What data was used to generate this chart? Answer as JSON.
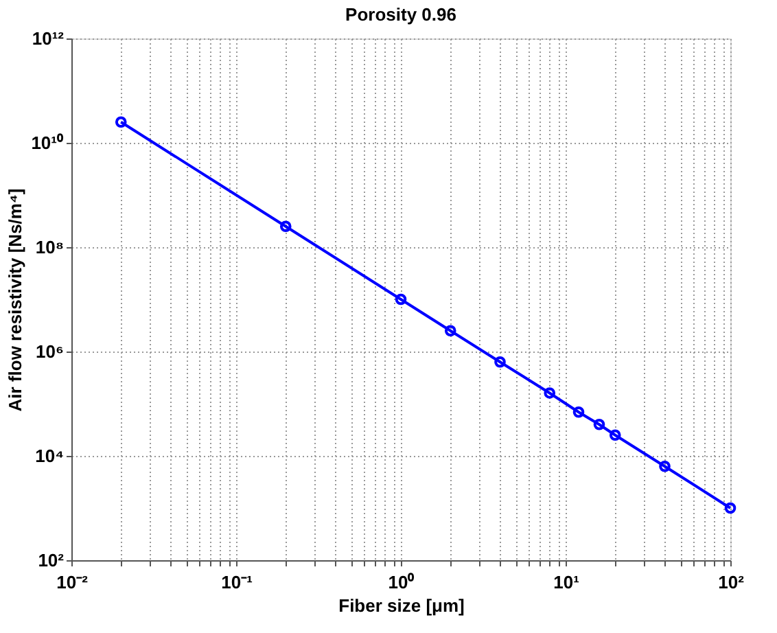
{
  "chart_data": {
    "type": "line",
    "title": "Porosity 0.96",
    "xlabel": "Fiber size [μm]",
    "ylabel": "Air flow resistivity [Ns/m⁴]",
    "x": [
      0.02,
      0.2,
      1,
      2,
      4,
      8,
      12,
      16,
      20,
      40,
      100
    ],
    "series": [
      {
        "color": "#0000ff",
        "values": [
          25000000000.0,
          250000000.0,
          10000000.0,
          2500000.0,
          630000.0,
          160000.0,
          69000.0,
          40000.0,
          25000.0,
          6300.0,
          1000.0
        ]
      }
    ],
    "log": "xy",
    "xlim": [
      0.01,
      100
    ],
    "ylim": [
      100,
      1000000000000.0
    ],
    "xticks": [
      {
        "value": 0.01,
        "label": "10⁻²"
      },
      {
        "value": 0.02,
        "label": null
      },
      {
        "value": 0.03,
        "label": null
      },
      {
        "value": 0.04,
        "label": null
      },
      {
        "value": 0.05,
        "label": null
      },
      {
        "value": 0.06,
        "label": null
      },
      {
        "value": 0.07,
        "label": null
      },
      {
        "value": 0.08,
        "label": null
      },
      {
        "value": 0.09,
        "label": null
      },
      {
        "value": 0.1,
        "label": "10⁻¹"
      },
      {
        "value": 0.2,
        "label": null
      },
      {
        "value": 0.3,
        "label": null
      },
      {
        "value": 0.4,
        "label": null
      },
      {
        "value": 0.5,
        "label": null
      },
      {
        "value": 0.6,
        "label": null
      },
      {
        "value": 0.7,
        "label": null
      },
      {
        "value": 0.8,
        "label": null
      },
      {
        "value": 0.9,
        "label": null
      },
      {
        "value": 1,
        "label": "10⁰"
      },
      {
        "value": 2,
        "label": null
      },
      {
        "value": 3,
        "label": null
      },
      {
        "value": 4,
        "label": null
      },
      {
        "value": 5,
        "label": null
      },
      {
        "value": 6,
        "label": null
      },
      {
        "value": 7,
        "label": null
      },
      {
        "value": 8,
        "label": null
      },
      {
        "value": 9,
        "label": null
      },
      {
        "value": 10,
        "label": "10¹"
      },
      {
        "value": 20,
        "label": null
      },
      {
        "value": 30,
        "label": null
      },
      {
        "value": 40,
        "label": null
      },
      {
        "value": 50,
        "label": null
      },
      {
        "value": 60,
        "label": null
      },
      {
        "value": 70,
        "label": null
      },
      {
        "value": 80,
        "label": null
      },
      {
        "value": 90,
        "label": null
      },
      {
        "value": 100,
        "label": "10²"
      }
    ],
    "yticks": [
      {
        "value": 100,
        "label": "10²"
      },
      {
        "value": 10000,
        "label": "10⁴"
      },
      {
        "value": 1000000,
        "label": "10⁶"
      },
      {
        "value": 100000000,
        "label": "10⁸"
      },
      {
        "value": 10000000000,
        "label": "10¹⁰"
      },
      {
        "value": 1000000000000,
        "label": "10¹²"
      }
    ],
    "grid": true,
    "marker": "circle",
    "line_style": "solid",
    "legend": false
  }
}
